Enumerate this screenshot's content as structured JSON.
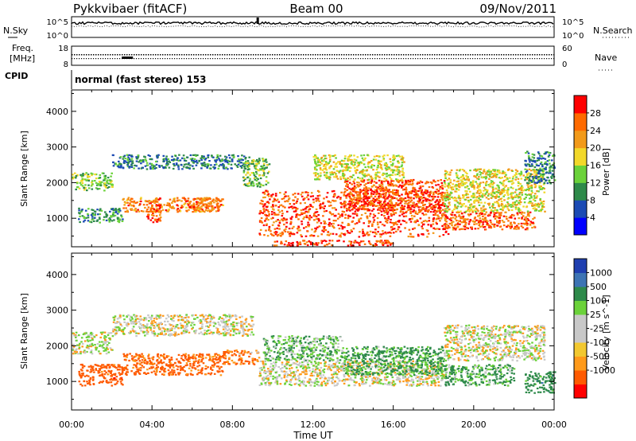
{
  "header": {
    "station": "Pykkvibaer (fitACF)",
    "beam": "Beam 00",
    "date": "09/Nov/2011"
  },
  "noise_panel": {
    "left_label": "N.Sky",
    "right_label": "N.Search",
    "left_ticks": [
      "10^5",
      "10^0"
    ],
    "right_ticks": [
      "10^5",
      "10^0"
    ]
  },
  "freq_panel": {
    "left_label_1": "Freq.",
    "left_label_2": "[MHz]",
    "right_label": "Nave",
    "left_ticks": [
      "18",
      "8"
    ],
    "right_ticks": [
      "60",
      "0"
    ]
  },
  "cpid": {
    "label": "CPID",
    "mode_text": "normal (fast stereo) 153"
  },
  "colors": {
    "power_scale": [
      "#0000ff",
      "#1c4bb4",
      "#2e8a4a",
      "#6bd23a",
      "#f2d82a",
      "#f29a1a",
      "#ff6a00",
      "#ff0000"
    ],
    "velocity_scale": [
      "#ff0000",
      "#ff5a00",
      "#ff9a1a",
      "#f2c830",
      "#c8c8c8",
      "#c8c8c8",
      "#6bd23a",
      "#2e8a4a",
      "#3d74b4",
      "#1f3fb0"
    ]
  },
  "chart_data": [
    {
      "type": "heatmap",
      "title": "Power [dB]",
      "xlabel": "",
      "ylabel": "Slant Range [km]",
      "x_ticks": [
        "00:00",
        "04:00",
        "08:00",
        "12:00",
        "16:00",
        "20:00",
        "00:00"
      ],
      "y_ticks": [
        1000,
        2000,
        3000,
        4000
      ],
      "ylim": [
        200,
        4600
      ],
      "colorbar_label": "Power [dB]",
      "colorbar_ticks": [
        4,
        8,
        12,
        16,
        20,
        24,
        28
      ],
      "colorbar_range": [
        0,
        32
      ],
      "bands": [
        {
          "from_hour": 0.0,
          "to_hour": 2.0,
          "range_km": [
            1800,
            2300
          ],
          "db": 14
        },
        {
          "from_hour": 0.3,
          "to_hour": 2.5,
          "range_km": [
            900,
            1300
          ],
          "db": 10
        },
        {
          "from_hour": 2.0,
          "to_hour": 8.8,
          "range_km": [
            2400,
            2800
          ],
          "db": 9
        },
        {
          "from_hour": 2.5,
          "to_hour": 7.5,
          "range_km": [
            1200,
            1600
          ],
          "db": 24
        },
        {
          "from_hour": 3.7,
          "to_hour": 4.4,
          "range_km": [
            900,
            1500
          ],
          "db": 27
        },
        {
          "from_hour": 5.6,
          "to_hour": 7.3,
          "range_km": [
            1300,
            1600
          ],
          "db": 25
        },
        {
          "from_hour": 8.5,
          "to_hour": 9.8,
          "range_km": [
            1900,
            2700
          ],
          "db": 13
        },
        {
          "from_hour": 9.3,
          "to_hour": 18.7,
          "range_km": [
            500,
            1800
          ],
          "db": 27
        },
        {
          "from_hour": 10.0,
          "to_hour": 16.0,
          "range_km": [
            250,
            400
          ],
          "db": 28
        },
        {
          "from_hour": 13.5,
          "to_hour": 18.5,
          "range_km": [
            1200,
            2100
          ],
          "db": 27
        },
        {
          "from_hour": 12.0,
          "to_hour": 16.5,
          "range_km": [
            2100,
            2800
          ],
          "db": 17
        },
        {
          "from_hour": 18.5,
          "to_hour": 23.0,
          "range_km": [
            700,
            1200
          ],
          "db": 26
        },
        {
          "from_hour": 18.5,
          "to_hour": 23.5,
          "range_km": [
            1200,
            2400
          ],
          "db": 18
        },
        {
          "from_hour": 22.5,
          "to_hour": 24.0,
          "range_km": [
            2000,
            2900
          ],
          "db": 9
        }
      ]
    },
    {
      "type": "heatmap",
      "title": "Velocity [m s^-1]",
      "xlabel": "Time UT",
      "ylabel": "Slant Range [km]",
      "x_ticks": [
        "00:00",
        "04:00",
        "08:00",
        "12:00",
        "16:00",
        "20:00",
        "00:00"
      ],
      "y_ticks": [
        1000,
        2000,
        3000,
        4000
      ],
      "ylim": [
        200,
        4600
      ],
      "colorbar_label": "Velocity [m s^-1]",
      "colorbar_ticks": [
        1000,
        500,
        100,
        25,
        -25,
        -100,
        -500,
        -1000
      ],
      "bands": [
        {
          "from_hour": 0.0,
          "to_hour": 2.0,
          "range_km": [
            1800,
            2400
          ],
          "vel": 10
        },
        {
          "from_hour": 0.3,
          "to_hour": 2.5,
          "range_km": [
            900,
            1500
          ],
          "vel": -300
        },
        {
          "from_hour": 2.0,
          "to_hour": 9.0,
          "range_km": [
            2300,
            2900
          ],
          "vel": 0
        },
        {
          "from_hour": 2.5,
          "to_hour": 7.5,
          "range_km": [
            1200,
            1800
          ],
          "vel": -200
        },
        {
          "from_hour": 7.5,
          "to_hour": 9.3,
          "range_km": [
            1500,
            1900
          ],
          "vel": -150
        },
        {
          "from_hour": 9.3,
          "to_hour": 18.5,
          "range_km": [
            900,
            1600
          ],
          "vel": 0
        },
        {
          "from_hour": 9.5,
          "to_hour": 13.5,
          "range_km": [
            1600,
            2300
          ],
          "vel": 80
        },
        {
          "from_hour": 13.5,
          "to_hour": 18.5,
          "range_km": [
            1200,
            2000
          ],
          "vel": 150
        },
        {
          "from_hour": 18.5,
          "to_hour": 23.5,
          "range_km": [
            1600,
            2600
          ],
          "vel": 0
        },
        {
          "from_hour": 18.5,
          "to_hour": 22.0,
          "range_km": [
            900,
            1500
          ],
          "vel": 120
        },
        {
          "from_hour": 22.5,
          "to_hour": 24.0,
          "range_km": [
            700,
            1300
          ],
          "vel": 300
        }
      ]
    }
  ]
}
